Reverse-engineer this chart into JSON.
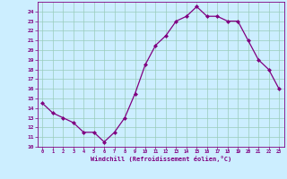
{
  "x": [
    0,
    1,
    2,
    3,
    4,
    5,
    6,
    7,
    8,
    9,
    10,
    11,
    12,
    13,
    14,
    15,
    16,
    17,
    18,
    19,
    20,
    21,
    22,
    23
  ],
  "y": [
    14.5,
    13.5,
    13.0,
    12.5,
    11.5,
    11.5,
    10.5,
    11.5,
    13.0,
    15.5,
    18.5,
    20.5,
    21.5,
    23.0,
    23.5,
    24.5,
    23.5,
    23.5,
    23.0,
    23.0,
    21.0,
    19.0,
    18.0,
    16.0
  ],
  "line_color": "#800080",
  "marker": "D",
  "marker_size": 2.0,
  "line_width": 0.9,
  "bg_color": "#cceeff",
  "grid_color": "#99ccbb",
  "xlabel": "Windchill (Refroidissement éolien,°C)",
  "xlabel_color": "#800080",
  "tick_color": "#800080",
  "ylim": [
    10,
    25
  ],
  "yticks": [
    10,
    11,
    12,
    13,
    14,
    15,
    16,
    17,
    18,
    19,
    20,
    21,
    22,
    23,
    24
  ],
  "xticks": [
    0,
    1,
    2,
    3,
    4,
    5,
    6,
    7,
    8,
    9,
    10,
    11,
    12,
    13,
    14,
    15,
    16,
    17,
    18,
    19,
    20,
    21,
    22,
    23
  ],
  "xlim": [
    -0.5,
    23.5
  ]
}
